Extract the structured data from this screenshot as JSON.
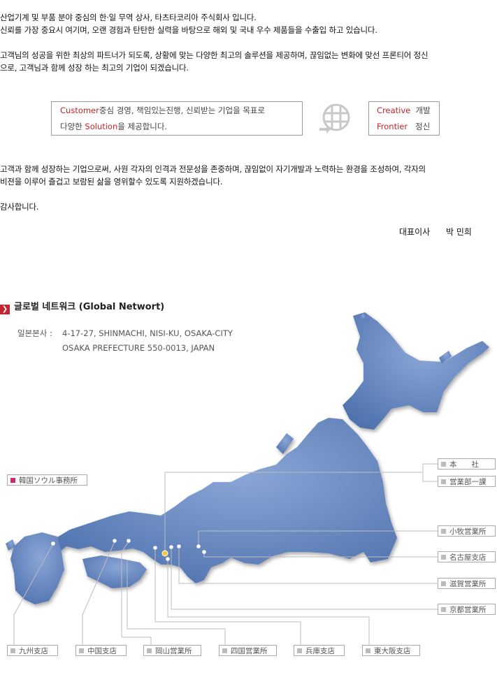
{
  "intro": {
    "line1": "산업기계 및 부품 분야 중심의 한·일 무역 상사, 타츠타코리아 주식회사 입니다.",
    "line2": "신뢰를 가장 중요시 여기며, 오랜 경험과 탄탄한 실력을 바탕으로 해외 및 국내 우수 제품들을 수출입 하고 있습니다.",
    "line3": "고객님의 성공을 위한 최상의 파트너가 되도록, 상황에 맞는 다양한 최고의 솔루션을 제공하며, 끊임없는 변화에 맞선 프론티어 정신",
    "line4": "으로, 고객님과 함께 성장 하는 최고의 기업이 되겠습니다."
  },
  "motto_box": {
    "customer_word": "Customer",
    "line1_rest": "중심 경영, 책임있는진행, 신뢰받는 기업을 목표로",
    "line2_pre": "다양한 ",
    "solution_word": "Solution",
    "line2_post": "을 제공합니다."
  },
  "spirit_box": {
    "creative_word": "Creative",
    "creative_rest": "개발",
    "frontier_word": "Frontier",
    "frontier_rest": "정신"
  },
  "body": {
    "line1": "고객과 함께 성장하는 기업으로써, 사원 각자의 인격과 전문성을 존중하며, 끊임없이 자기개발과 노력하는 환경을 조성하여, 각자의",
    "line2": "비젼을 이루어 즐겁고 보람된 삶을 영위할수 있도록 지원하겠습니다.",
    "thanks": "감사합니다."
  },
  "signature": {
    "title": "대표이사",
    "name": "박 민희"
  },
  "network": {
    "title": "글로벌 네트워크 (Global Networt)",
    "hq_label": "일본본사 :",
    "address_line1": "4-17-27, SHINMACHI, NISI-KU, OSAKA-CITY",
    "address_line2": "OSAKA PREFECTURE 550-0013, JAPAN"
  },
  "offices": {
    "korea": "韓国ソウル事務所",
    "honsha": "本　　社",
    "eigyo1": "営業部一課",
    "komaki": "小牧営業所",
    "nagoya": "名古屋支店",
    "shiga": "滋賀営業所",
    "kyoto": "京都営業所",
    "kyushu": "九州支店",
    "chugoku": "中国支店",
    "okayama": "岡山営業所",
    "shikoku": "四国営業所",
    "hyogo": "兵庫支店",
    "higashiosaka": "東大阪支店"
  },
  "colors": {
    "accent": "#c0262b",
    "map_fill": "#5a7dba",
    "korea_marker": "#d6246e"
  }
}
